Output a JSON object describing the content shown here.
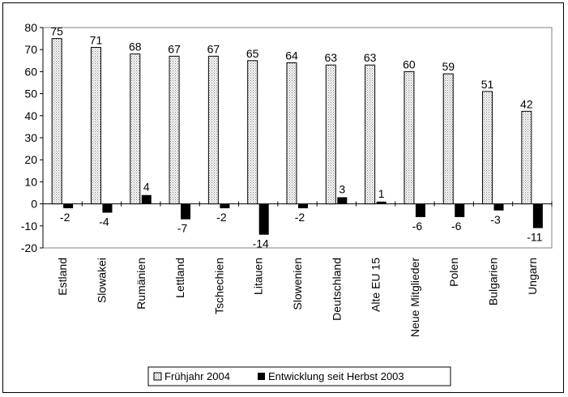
{
  "chart_data": {
    "type": "bar",
    "categories": [
      "Estland",
      "Slowakei",
      "Rumänien",
      "Lettland",
      "Tschechien",
      "Litauen",
      "Slowenien",
      "Deutschland",
      "Alte EU 15",
      "Neue Mitglieder",
      "Polen",
      "Bulgarien",
      "Ungarn"
    ],
    "series": [
      {
        "name": "Frühjahr 2004",
        "values": [
          75,
          71,
          68,
          67,
          67,
          65,
          64,
          63,
          63,
          60,
          59,
          51,
          42
        ],
        "pattern": "dotted",
        "color": "#dddddd"
      },
      {
        "name": "Entwicklung seit Herbst 2003",
        "values": [
          -2,
          -4,
          4,
          -7,
          -2,
          -14,
          -2,
          3,
          1,
          -6,
          -6,
          -3,
          -11
        ],
        "pattern": "solid",
        "color": "#000000"
      }
    ],
    "data_labels": {
      "series1": [
        "75",
        "71",
        "68",
        "67",
        "67",
        "65",
        "64",
        "63",
        "63",
        "60",
        "59",
        "51",
        "42"
      ],
      "series2": [
        "-2",
        "-4",
        "4",
        "-7",
        "-2",
        "-14",
        "-2",
        "3",
        "1",
        "-6",
        "-6",
        "-3",
        "-11"
      ]
    },
    "yticks": [
      "80",
      "70",
      "60",
      "50",
      "40",
      "30",
      "20",
      "10",
      "0",
      "-10",
      "-20"
    ],
    "ylim": [
      -20,
      80
    ],
    "grid": false,
    "legend_position": "bottom"
  }
}
